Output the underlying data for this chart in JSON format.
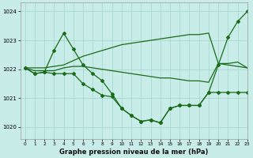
{
  "title": "Graphe pression niveau de la mer (hPa)",
  "bg_color": "#c8ece8",
  "grid_color": "#a8d8d0",
  "line_color": "#1a6b1a",
  "xlim": [
    -0.5,
    23
  ],
  "ylim": [
    1019.6,
    1024.3
  ],
  "yticks": [
    1020,
    1021,
    1022,
    1023,
    1024
  ],
  "xticks": [
    0,
    1,
    2,
    3,
    4,
    5,
    6,
    7,
    8,
    9,
    10,
    11,
    12,
    13,
    14,
    15,
    16,
    17,
    18,
    19,
    20,
    21,
    22,
    23
  ],
  "line_upper_flat": [
    1022.05,
    1022.05,
    1022.05,
    1022.1,
    1022.15,
    1022.3,
    1022.45,
    1022.55,
    1022.65,
    1022.75,
    1022.85,
    1022.9,
    1022.95,
    1023.0,
    1023.05,
    1023.1,
    1023.15,
    1023.2,
    1023.2,
    1023.25,
    1022.2,
    1022.2,
    1022.25,
    1022.05
  ],
  "line_spiky": [
    1022.05,
    1021.85,
    1021.9,
    1022.65,
    1023.25,
    1022.7,
    1022.15,
    1021.85,
    1021.6,
    1021.15,
    1020.65,
    1020.4,
    1020.2,
    1020.25,
    1020.15,
    1020.65,
    1020.75,
    1020.75,
    1020.75,
    1021.2,
    1022.15,
    1023.1,
    1023.65,
    1024.0
  ],
  "line_mid_flat": [
    1022.05,
    1021.95,
    1021.95,
    1021.95,
    1022.05,
    1022.1,
    1022.1,
    1022.05,
    1022.0,
    1021.95,
    1021.9,
    1021.85,
    1021.8,
    1021.75,
    1021.7,
    1021.7,
    1021.65,
    1021.6,
    1021.6,
    1021.55,
    1022.2,
    1022.15,
    1022.1,
    1022.05
  ],
  "line_bottom_wiggly": [
    1022.05,
    1021.85,
    1021.9,
    1021.85,
    1021.85,
    1021.85,
    1021.5,
    1021.3,
    1021.1,
    1021.05,
    1020.65,
    1020.4,
    1020.2,
    1020.25,
    1020.15,
    1020.65,
    1020.75,
    1020.75,
    1020.75,
    1021.2,
    1021.2,
    1021.2,
    1021.2,
    1021.2
  ]
}
